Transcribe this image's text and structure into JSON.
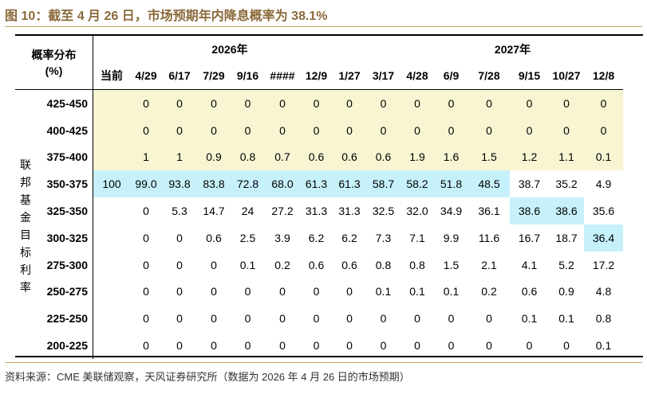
{
  "figure": {
    "title": "图 10：截至 4 月 26 日，市场预期年内降息概率为 38.1%",
    "source": "资料来源：CME 美联储观察，天风证券研究所（数据为 2026 年 4 月 26 日的市场预期）"
  },
  "table": {
    "corner_line1": "概率分布",
    "corner_line2": "(%)",
    "side_label": [
      "联",
      "邦",
      "基",
      "金",
      "目",
      "标",
      "利",
      "率"
    ],
    "years": [
      {
        "label": "2026年"
      },
      {
        "label": "2027年"
      }
    ],
    "columns": [
      "当前",
      "4/29",
      "6/17",
      "7/29",
      "9/16",
      "####",
      "12/9",
      "1/27",
      "3/17",
      "4/28",
      "6/9",
      "7/28",
      "9/15",
      "10/27",
      "12/8"
    ],
    "rows": [
      {
        "range": "425-450",
        "values": [
          "",
          "0",
          "0",
          "0",
          "0",
          "0",
          "0",
          "0",
          "0",
          "0",
          "0",
          "0",
          "0",
          "0",
          "0"
        ]
      },
      {
        "range": "400-425",
        "values": [
          "",
          "0",
          "0",
          "0",
          "0",
          "0",
          "0",
          "0",
          "0",
          "0",
          "0",
          "0",
          "0",
          "0",
          "0"
        ]
      },
      {
        "range": "375-400",
        "values": [
          "",
          "1",
          "1",
          "0.9",
          "0.8",
          "0.7",
          "0.6",
          "0.6",
          "0.6",
          "1.9",
          "1.6",
          "1.5",
          "1.2",
          "1.1",
          "0.1"
        ]
      },
      {
        "range": "350-375",
        "values": [
          "100",
          "99.0",
          "93.8",
          "83.8",
          "72.8",
          "68.0",
          "61.3",
          "61.3",
          "58.7",
          "58.2",
          "51.8",
          "48.5",
          "38.7",
          "35.2",
          "4.9"
        ]
      },
      {
        "range": "325-350",
        "values": [
          "",
          "0",
          "5.3",
          "14.7",
          "24",
          "27.2",
          "31.3",
          "31.3",
          "32.5",
          "32.0",
          "34.9",
          "36.1",
          "38.6",
          "38.6",
          "35.6"
        ]
      },
      {
        "range": "300-325",
        "values": [
          "",
          "0",
          "0",
          "0.6",
          "2.5",
          "3.9",
          "6.2",
          "6.2",
          "7.3",
          "7.1",
          "9.9",
          "11.6",
          "16.7",
          "18.7",
          "36.4"
        ]
      },
      {
        "range": "275-300",
        "values": [
          "",
          "0",
          "0",
          "0",
          "0.1",
          "0.2",
          "0.6",
          "0.6",
          "0.8",
          "0.8",
          "1.5",
          "2.1",
          "4.1",
          "5.2",
          "17.2"
        ]
      },
      {
        "range": "250-275",
        "values": [
          "",
          "0",
          "0",
          "0",
          "0",
          "0",
          "0",
          "0",
          "0.1",
          "0.1",
          "0.1",
          "0.2",
          "0.6",
          "0.9",
          "4.8"
        ]
      },
      {
        "range": "225-250",
        "values": [
          "",
          "0",
          "0",
          "0",
          "0",
          "0",
          "0",
          "0",
          "0",
          "0",
          "0",
          "0",
          "0.1",
          "0.1",
          "0.8"
        ]
      },
      {
        "range": "200-225",
        "values": [
          "",
          "0",
          "0",
          "0",
          "0",
          "0",
          "0",
          "0",
          "0",
          "0",
          "0",
          "0",
          "0",
          "0",
          "0.1"
        ]
      }
    ],
    "colors": {
      "yellow": "#f8f5d3",
      "cyan": "#c6f1fb",
      "title": "#8a6a3a"
    },
    "highlight": {
      "yellow_rows": [
        0,
        1,
        2
      ],
      "cyan_cells": [
        [
          3,
          0
        ],
        [
          3,
          1
        ],
        [
          3,
          2
        ],
        [
          3,
          3
        ],
        [
          3,
          4
        ],
        [
          3,
          5
        ],
        [
          3,
          6
        ],
        [
          3,
          7
        ],
        [
          3,
          8
        ],
        [
          3,
          9
        ],
        [
          3,
          10
        ],
        [
          3,
          11
        ],
        [
          4,
          12
        ],
        [
          4,
          13
        ],
        [
          5,
          14
        ]
      ]
    }
  }
}
